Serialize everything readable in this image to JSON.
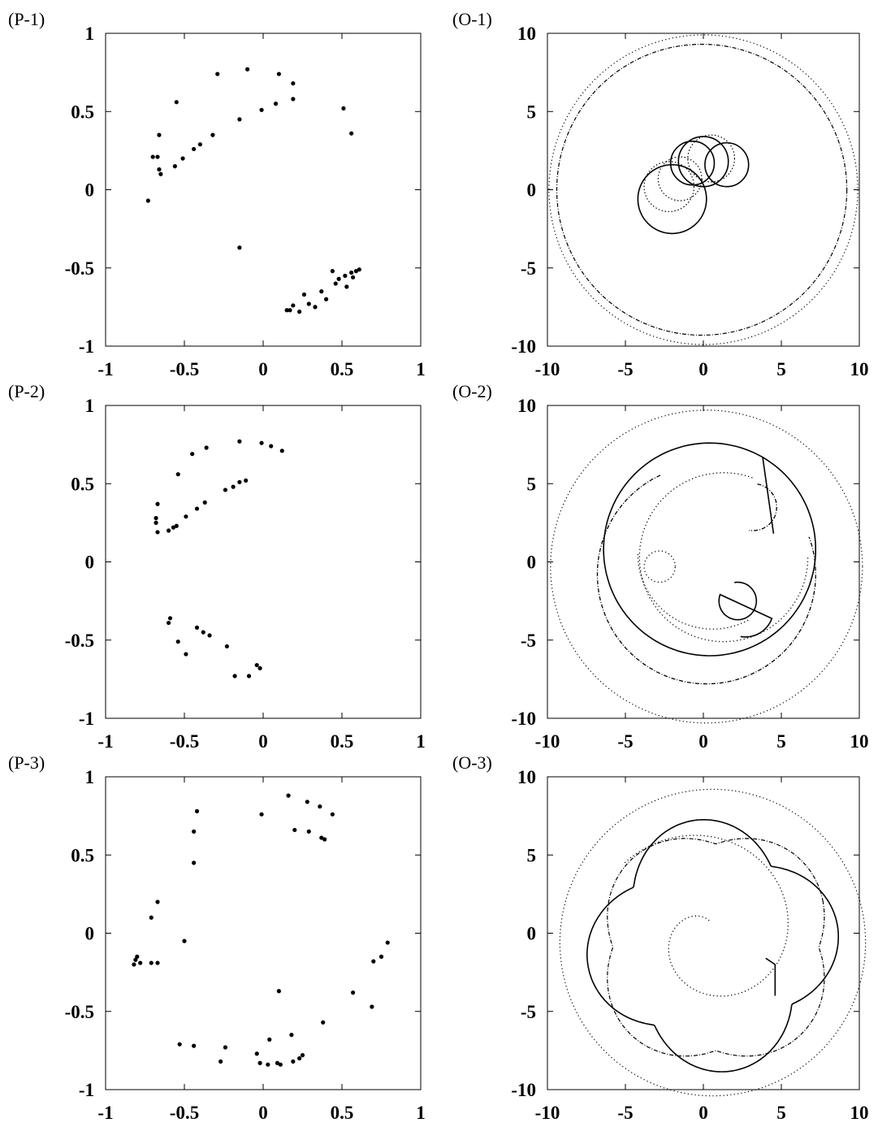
{
  "colors": {
    "ink": "#000000",
    "background": "#ffffff"
  },
  "chart_data": [
    {
      "type": "scatter",
      "panel_label": "(P-1)",
      "xlim": [
        -1,
        1
      ],
      "ylim": [
        -1,
        1
      ],
      "xticks": [
        "-1",
        "-0.5",
        "0",
        "0.5",
        "1"
      ],
      "yticks": [
        "1",
        "0.5",
        "0",
        "-0.5",
        "-1"
      ],
      "grid": false,
      "points": [
        [
          -0.73,
          -0.07
        ],
        [
          -0.7,
          0.21
        ],
        [
          -0.67,
          0.21
        ],
        [
          -0.66,
          0.35
        ],
        [
          -0.66,
          0.13
        ],
        [
          -0.65,
          0.1
        ],
        [
          -0.56,
          0.15
        ],
        [
          -0.51,
          0.2
        ],
        [
          -0.44,
          0.26
        ],
        [
          -0.4,
          0.29
        ],
        [
          -0.32,
          0.35
        ],
        [
          -0.55,
          0.56
        ],
        [
          -0.29,
          0.74
        ],
        [
          -0.15,
          0.45
        ],
        [
          -0.1,
          0.77
        ],
        [
          -0.01,
          0.51
        ],
        [
          0.08,
          0.55
        ],
        [
          0.1,
          0.74
        ],
        [
          0.19,
          0.68
        ],
        [
          0.19,
          0.58
        ],
        [
          0.51,
          0.52
        ],
        [
          0.56,
          0.36
        ],
        [
          -0.15,
          -0.37
        ],
        [
          0.15,
          -0.77
        ],
        [
          0.17,
          -0.77
        ],
        [
          0.19,
          -0.74
        ],
        [
          0.23,
          -0.78
        ],
        [
          0.26,
          -0.67
        ],
        [
          0.29,
          -0.73
        ],
        [
          0.33,
          -0.75
        ],
        [
          0.37,
          -0.65
        ],
        [
          0.4,
          -0.7
        ],
        [
          0.44,
          -0.52
        ],
        [
          0.46,
          -0.6
        ],
        [
          0.48,
          -0.57
        ],
        [
          0.52,
          -0.55
        ],
        [
          0.53,
          -0.62
        ],
        [
          0.56,
          -0.53
        ],
        [
          0.57,
          -0.56
        ],
        [
          0.59,
          -0.52
        ],
        [
          0.61,
          -0.51
        ]
      ]
    },
    {
      "type": "line",
      "panel_label": "(O-1)",
      "xlim": [
        -10,
        10
      ],
      "ylim": [
        -10,
        10
      ],
      "xticks": [
        "-10",
        "-5",
        "0",
        "5",
        "10"
      ],
      "yticks": [
        "10",
        "5",
        "0",
        "-5",
        "-10"
      ],
      "grid": false,
      "circles": [
        {
          "cx": 0,
          "cy": 0,
          "r": 9.9,
          "style": "dotted"
        },
        {
          "cx": -0.1,
          "cy": 0,
          "r": 9.3,
          "style": "dashdot"
        }
      ],
      "loops": [
        [
          -2.0,
          -0.6,
          2.2
        ],
        [
          -1.5,
          0.7,
          1.4
        ],
        [
          -0.7,
          1.7,
          1.4
        ],
        [
          0.5,
          2.0,
          1.5
        ],
        [
          1.5,
          1.6,
          1.4
        ],
        [
          -2.2,
          0.2,
          1.6
        ],
        [
          0.0,
          1.8,
          1.6
        ]
      ]
    },
    {
      "type": "scatter",
      "panel_label": "(P-2)",
      "xlim": [
        -1,
        1
      ],
      "ylim": [
        -1,
        1
      ],
      "xticks": [
        "-1",
        "-0.5",
        "0",
        "0.5",
        "1"
      ],
      "yticks": [
        "1",
        "0.5",
        "0",
        "-0.5",
        "-1"
      ],
      "grid": false,
      "points": [
        [
          -0.67,
          0.37
        ],
        [
          -0.68,
          0.28
        ],
        [
          -0.68,
          0.25
        ],
        [
          -0.67,
          0.19
        ],
        [
          -0.6,
          0.2
        ],
        [
          -0.57,
          0.22
        ],
        [
          -0.55,
          0.23
        ],
        [
          -0.49,
          0.29
        ],
        [
          -0.42,
          0.34
        ],
        [
          -0.37,
          0.38
        ],
        [
          -0.54,
          0.56
        ],
        [
          -0.45,
          0.69
        ],
        [
          -0.36,
          0.73
        ],
        [
          -0.24,
          0.46
        ],
        [
          -0.19,
          0.48
        ],
        [
          -0.15,
          0.51
        ],
        [
          -0.11,
          0.52
        ],
        [
          -0.15,
          0.77
        ],
        [
          -0.01,
          0.76
        ],
        [
          0.05,
          0.74
        ],
        [
          0.12,
          0.71
        ],
        [
          -0.59,
          -0.36
        ],
        [
          -0.6,
          -0.39
        ],
        [
          -0.54,
          -0.51
        ],
        [
          -0.49,
          -0.59
        ],
        [
          -0.42,
          -0.42
        ],
        [
          -0.38,
          -0.45
        ],
        [
          -0.34,
          -0.47
        ],
        [
          -0.23,
          -0.54
        ],
        [
          -0.18,
          -0.73
        ],
        [
          -0.09,
          -0.73
        ],
        [
          -0.04,
          -0.66
        ],
        [
          -0.02,
          -0.68
        ]
      ]
    },
    {
      "type": "line",
      "panel_label": "(O-2)",
      "xlim": [
        -10,
        10
      ],
      "ylim": [
        -10,
        10
      ],
      "xticks": [
        "-10",
        "-5",
        "0",
        "5",
        "10"
      ],
      "yticks": [
        "10",
        "5",
        "0",
        "-5",
        "-10"
      ],
      "grid": false,
      "circles": [
        {
          "cx": 0.2,
          "cy": -0.3,
          "r": 10.0,
          "style": "dotted"
        }
      ]
    },
    {
      "type": "scatter",
      "panel_label": "(P-3)",
      "xlim": [
        -1,
        1
      ],
      "ylim": [
        -1,
        1
      ],
      "xticks": [
        "-1",
        "-0.5",
        "0",
        "0.5",
        "1"
      ],
      "yticks": [
        "1",
        "0.5",
        "0",
        "-0.5",
        "-1"
      ],
      "grid": false,
      "points": [
        [
          -0.82,
          -0.2
        ],
        [
          -0.81,
          -0.17
        ],
        [
          -0.8,
          -0.15
        ],
        [
          -0.78,
          -0.19
        ],
        [
          -0.71,
          -0.19
        ],
        [
          -0.67,
          -0.19
        ],
        [
          -0.71,
          0.1
        ],
        [
          -0.67,
          0.2
        ],
        [
          -0.5,
          -0.05
        ],
        [
          -0.44,
          0.45
        ],
        [
          -0.44,
          0.65
        ],
        [
          -0.42,
          0.78
        ],
        [
          -0.53,
          -0.71
        ],
        [
          -0.44,
          -0.72
        ],
        [
          -0.27,
          -0.82
        ],
        [
          -0.24,
          -0.73
        ],
        [
          -0.04,
          -0.77
        ],
        [
          -0.02,
          -0.83
        ],
        [
          0.03,
          -0.84
        ],
        [
          0.04,
          -0.68
        ],
        [
          0.09,
          -0.83
        ],
        [
          0.11,
          -0.84
        ],
        [
          0.18,
          -0.65
        ],
        [
          0.19,
          -0.82
        ],
        [
          0.23,
          -0.8
        ],
        [
          0.25,
          -0.78
        ],
        [
          0.38,
          -0.57
        ],
        [
          0.1,
          -0.37
        ],
        [
          0.57,
          -0.38
        ],
        [
          0.69,
          -0.47
        ],
        [
          0.7,
          -0.18
        ],
        [
          0.75,
          -0.15
        ],
        [
          0.79,
          -0.06
        ],
        [
          -0.01,
          0.76
        ],
        [
          0.16,
          0.88
        ],
        [
          0.2,
          0.66
        ],
        [
          0.28,
          0.84
        ],
        [
          0.29,
          0.65
        ],
        [
          0.36,
          0.81
        ],
        [
          0.37,
          0.61
        ],
        [
          0.39,
          0.6
        ],
        [
          0.44,
          0.76
        ]
      ]
    },
    {
      "type": "line",
      "panel_label": "(O-3)",
      "xlim": [
        -10,
        10
      ],
      "ylim": [
        -10,
        10
      ],
      "xticks": [
        "-10",
        "-5",
        "0",
        "5",
        "10"
      ],
      "yticks": [
        "10",
        "5",
        "0",
        "-5",
        "-10"
      ],
      "grid": false,
      "circles": [
        {
          "cx": 0.6,
          "cy": -0.6,
          "r": 9.8,
          "style": "dotted"
        }
      ]
    }
  ]
}
